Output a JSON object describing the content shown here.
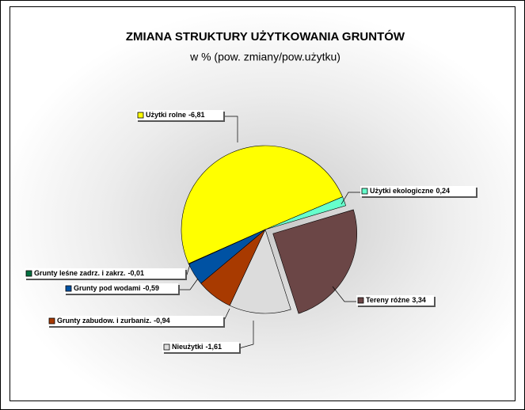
{
  "chart_data": {
    "type": "pie",
    "title": "ZMIANA STRUKTURY UŻYTKOWANIA GRUNTÓW",
    "subtitle": "w % (pow. zmiany/pow.użytku)",
    "categories": [
      "Użytki rolne",
      "Użytki ekologiczne",
      "Tereny różne",
      "Nieużytki",
      "Grunty zabudow. i zurbaniz.",
      "Grunty pod wodami",
      "Grunty leśne zadrz. i zakrz."
    ],
    "values": [
      -6.81,
      0.24,
      3.34,
      -1.61,
      -0.94,
      -0.59,
      -0.01
    ],
    "value_labels": [
      "-6,81",
      "0,24",
      "3,34",
      "-1,61",
      "-0,94",
      "-0,59",
      "-0,01"
    ],
    "colors": [
      "#ffff00",
      "#66ffcc",
      "#6b4646",
      "#dcdcdc",
      "#a83a00",
      "#0052a3",
      "#007040"
    ]
  }
}
